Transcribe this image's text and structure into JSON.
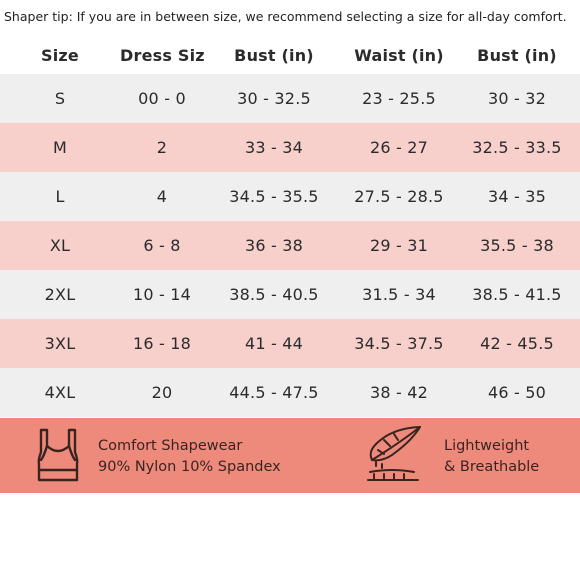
{
  "tip": "Shaper tip: If you are in between size, we recommend selecting a size for all-day comfort.",
  "table": {
    "headers": [
      "Size",
      "Dress Size",
      "Bust (in)",
      "Waist (in)",
      "Bust (in)"
    ],
    "rows": [
      [
        "S",
        "00 - 0",
        "30 - 32.5",
        "23 - 25.5",
        "30 - 32"
      ],
      [
        "M",
        "2",
        "33 - 34",
        "26 - 27",
        "32.5 - 33.5"
      ],
      [
        "L",
        "4",
        "34.5 - 35.5",
        "27.5 - 28.5",
        "34 - 35"
      ],
      [
        "XL",
        "6 - 8",
        "36 -  38",
        "29 - 31",
        "35.5 - 38"
      ],
      [
        "2XL",
        "10 - 14",
        "38.5 - 40.5",
        "31.5 - 34",
        "38.5 - 41.5"
      ],
      [
        "3XL",
        "16 - 18",
        "41 - 44",
        "34.5 - 37.5",
        "42 - 45.5"
      ],
      [
        "4XL",
        "20",
        "44.5 - 47.5",
        "38 - 42",
        "46 - 50"
      ]
    ]
  },
  "features": {
    "comfort": {
      "line1": "Comfort Shapewear",
      "line2": "90% Nylon 10% Spandex",
      "icon": "sports-bra-icon"
    },
    "lightweight": {
      "line1": "Lightweight",
      "line2": "& Breathable",
      "icon": "feather-icon"
    }
  },
  "colors": {
    "pink_row": "#f7cfcb",
    "gray_row": "#efefef",
    "footer": "#ee8a7c"
  }
}
